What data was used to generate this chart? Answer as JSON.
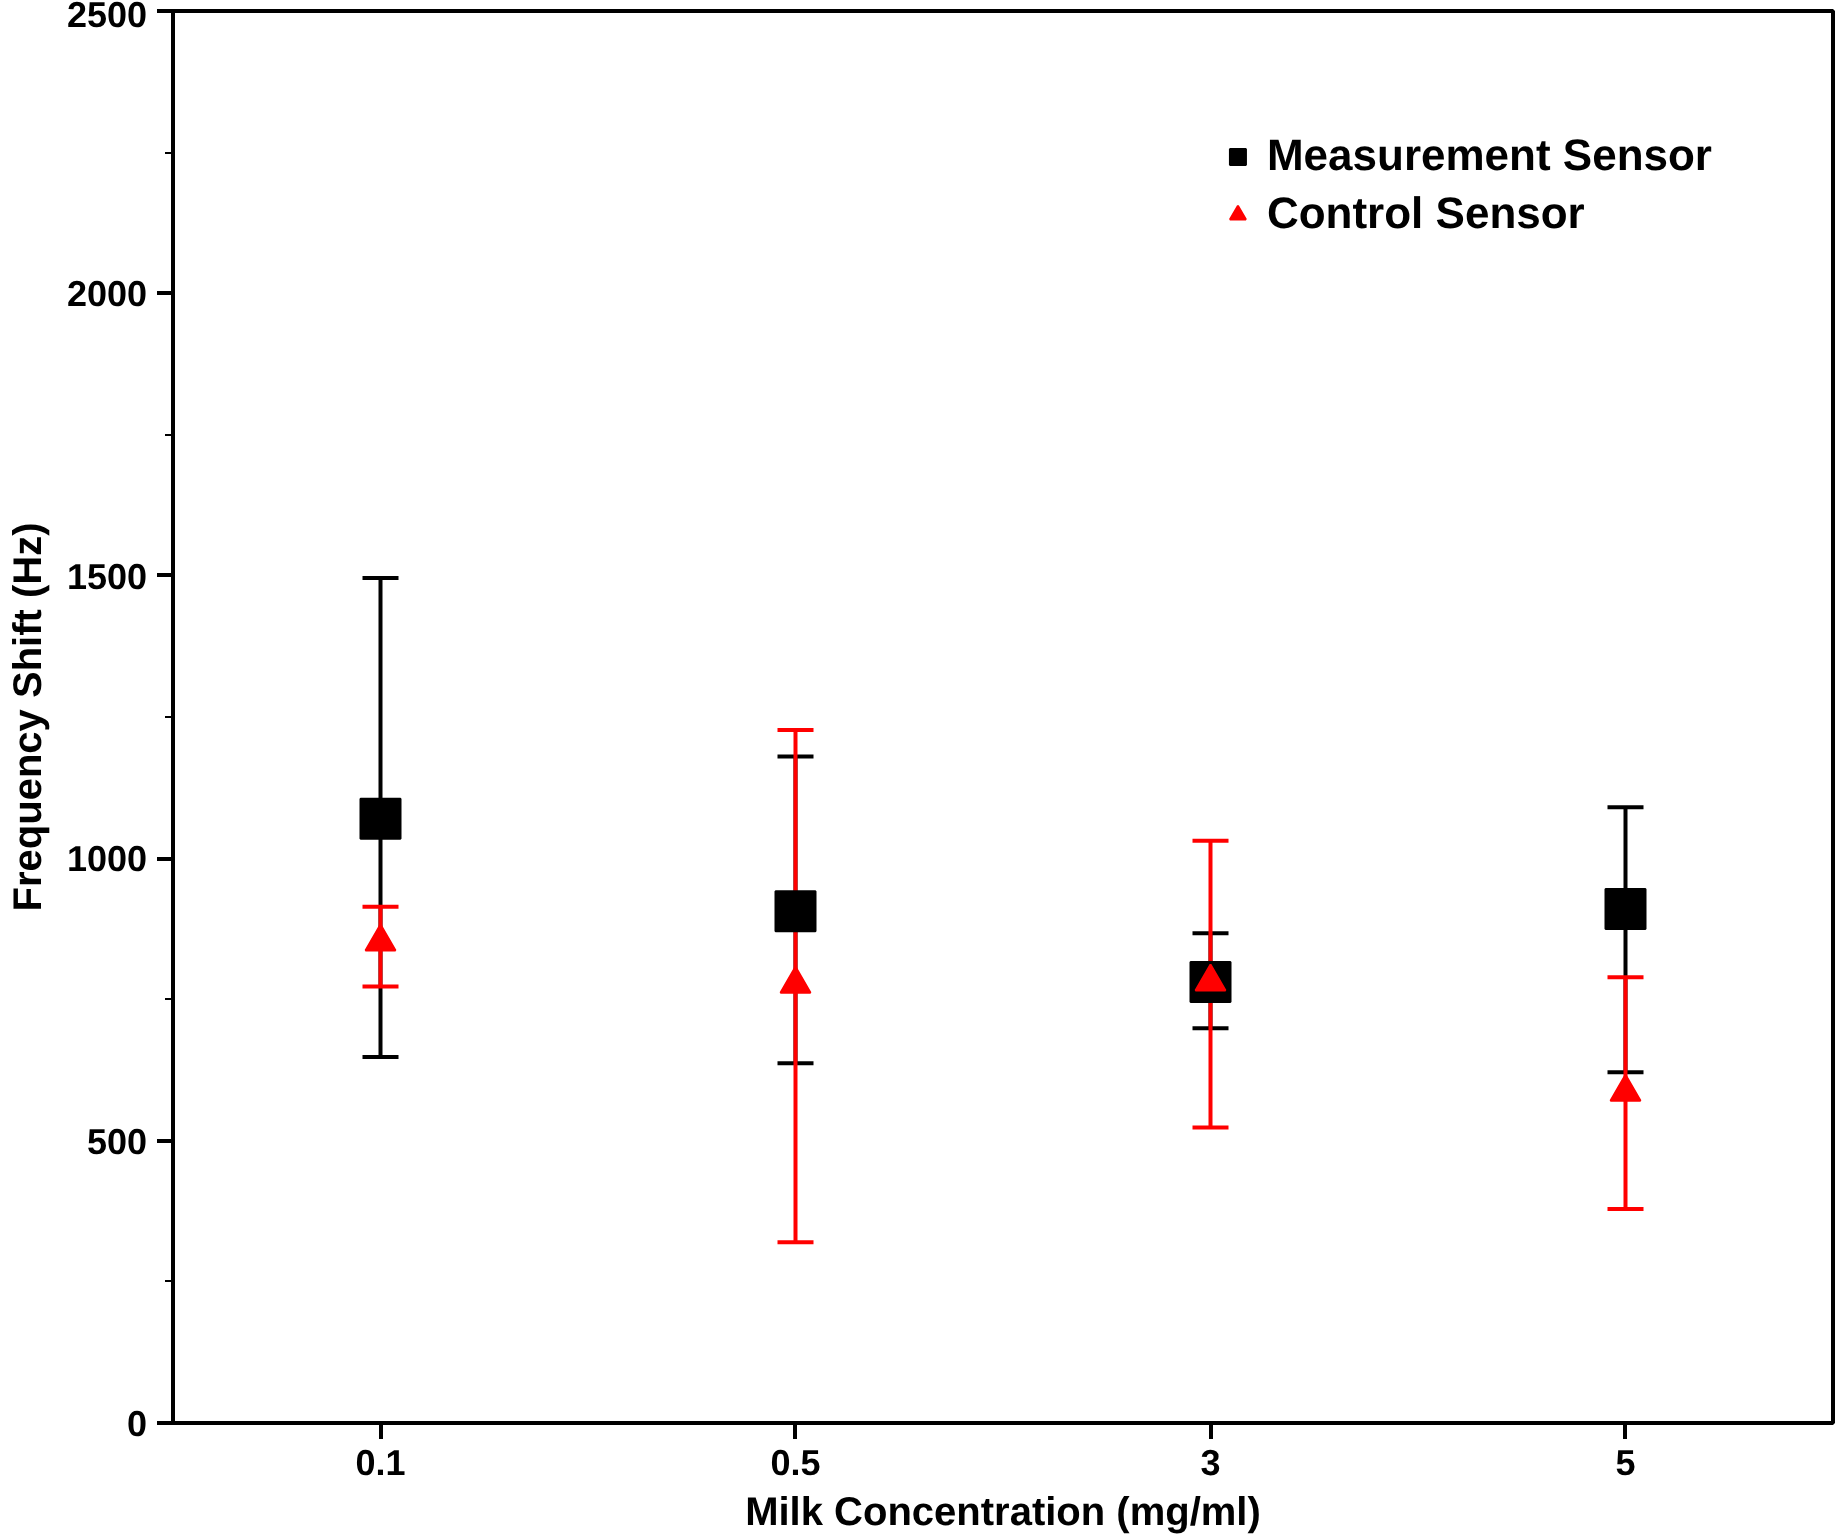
{
  "chart_data": {
    "type": "scatter",
    "xlabel": "Milk Concentration (mg/ml)",
    "ylabel": "Frequency Shift (Hz)",
    "categories": [
      "0.1",
      "0.5",
      "3",
      "5"
    ],
    "series": [
      {
        "name": "Measurement Sensor",
        "color": "#000000",
        "marker": "square",
        "values": [
          1070,
          906,
          781,
          910
        ],
        "errors": [
          [
            648,
            1496
          ],
          [
            637,
            1180
          ],
          [
            699,
            867
          ],
          [
            621,
            1090
          ]
        ]
      },
      {
        "name": "Control Sensor",
        "color": "#ff0000",
        "marker": "triangle",
        "values": [
          852,
          777,
          781,
          586
        ],
        "errors": [
          [
            773,
            914
          ],
          [
            320,
            1227
          ],
          [
            523,
            1031
          ],
          [
            379,
            789
          ]
        ]
      }
    ],
    "ylim": [
      0,
      2500
    ],
    "yticks": [
      0,
      500,
      1000,
      1500,
      2000,
      2500
    ],
    "grid": false,
    "legend": "top right"
  }
}
